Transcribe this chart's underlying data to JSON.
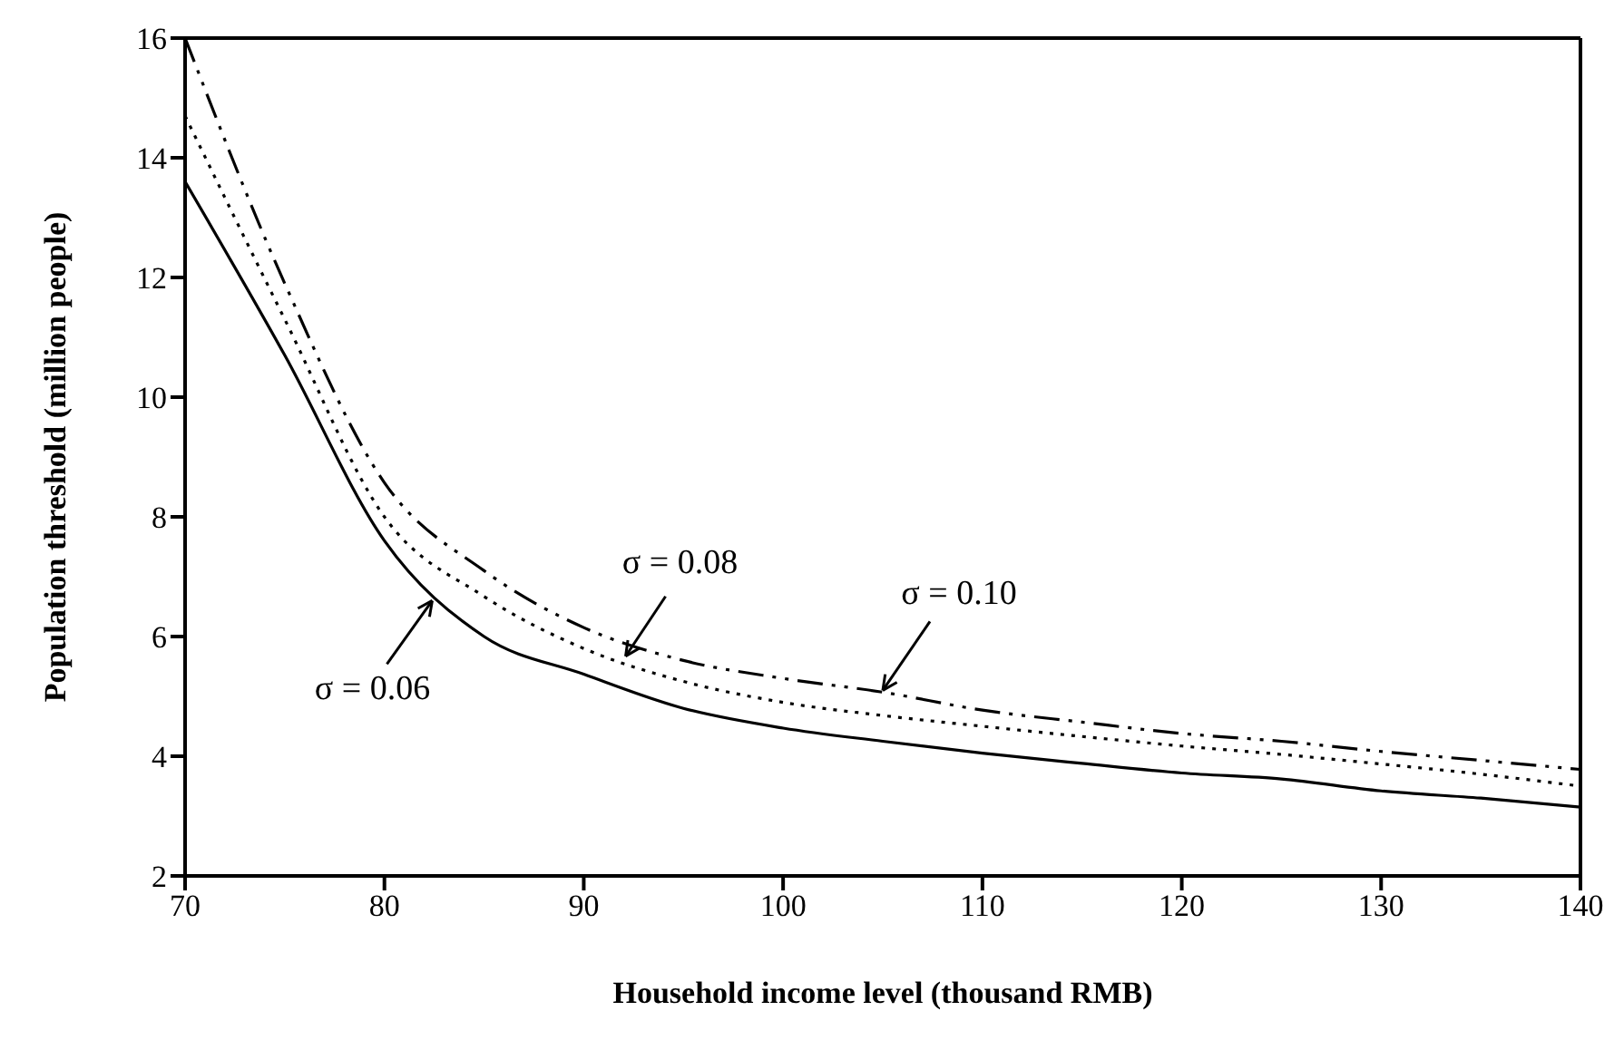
{
  "chart_data": {
    "type": "line",
    "xlabel": "Household income level (thousand RMB)",
    "ylabel": "Population threshold (million people)",
    "x": [
      70,
      75,
      80,
      85,
      90,
      95,
      100,
      105,
      110,
      115,
      120,
      125,
      130,
      135,
      140
    ],
    "xlim": [
      70,
      140
    ],
    "xticks": [
      70,
      80,
      90,
      100,
      110,
      120,
      130,
      140
    ],
    "ylim": [
      2,
      16
    ],
    "yticks": [
      2,
      4,
      6,
      8,
      10,
      12,
      14,
      16
    ],
    "marker": "none",
    "series": [
      {
        "color": "#000000",
        "line_style": "solid",
        "values": [
          13.6,
          10.7,
          7.6,
          6.0,
          5.37,
          4.8,
          4.47,
          4.25,
          4.05,
          3.88,
          3.72,
          3.62,
          3.42,
          3.3,
          3.15
        ]
      },
      {
        "color": "#000000",
        "line_style": "dotted",
        "values": [
          14.7,
          11.3,
          8.0,
          6.67,
          5.8,
          5.25,
          4.9,
          4.68,
          4.5,
          4.33,
          4.17,
          4.03,
          3.87,
          3.7,
          3.5
        ]
      },
      {
        "color": "#000000",
        "line_style": "dashed",
        "values": [
          16,
          11.9,
          8.57,
          7.1,
          6.15,
          5.6,
          5.3,
          5.07,
          4.77,
          4.57,
          4.38,
          4.25,
          4.08,
          3.93,
          3.78
        ]
      }
    ],
    "annotations": [
      {
        "text": "σ = 0.06",
        "x": 82.4,
        "y": 6.6
      },
      {
        "text": "σ = 0.08",
        "x": 92.1,
        "y": 5.67
      },
      {
        "text": "σ = 0.10",
        "x": 105,
        "y": 5.1
      }
    ]
  }
}
